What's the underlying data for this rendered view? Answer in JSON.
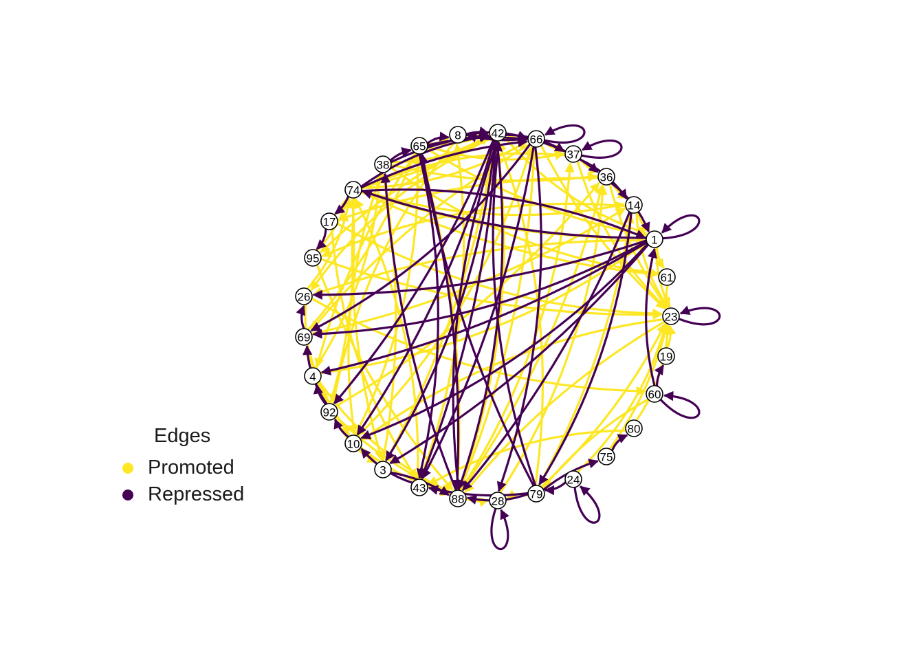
{
  "legend": {
    "title": "Edges",
    "items": [
      {
        "label": "Promoted",
        "color": "#FDE725"
      },
      {
        "label": "Repressed",
        "color": "#440154"
      }
    ]
  },
  "nodes": [
    "42",
    "66",
    "37",
    "36",
    "14",
    "1",
    "61",
    "23",
    "19",
    "60",
    "80",
    "75",
    "24",
    "79",
    "28",
    "88",
    "43",
    "3",
    "10",
    "92",
    "4",
    "69",
    "26",
    "95",
    "17",
    "74",
    "38",
    "65",
    "8"
  ],
  "edges": {
    "promoted": [
      [
        "65",
        "42"
      ],
      [
        "38",
        "42"
      ],
      [
        "74",
        "42"
      ],
      [
        "74",
        "66"
      ],
      [
        "8",
        "66"
      ],
      [
        "65",
        "37"
      ],
      [
        "38",
        "36"
      ],
      [
        "74",
        "14"
      ],
      [
        "74",
        "1"
      ],
      [
        "17",
        "74"
      ],
      [
        "95",
        "74"
      ],
      [
        "26",
        "74"
      ],
      [
        "69",
        "65"
      ],
      [
        "4",
        "38"
      ],
      [
        "92",
        "74"
      ],
      [
        "10",
        "65"
      ],
      [
        "3",
        "38"
      ],
      [
        "43",
        "74"
      ],
      [
        "88",
        "65"
      ],
      [
        "88",
        "42"
      ],
      [
        "88",
        "66"
      ],
      [
        "88",
        "37"
      ],
      [
        "88",
        "36"
      ],
      [
        "28",
        "36"
      ],
      [
        "79",
        "14"
      ],
      [
        "79",
        "42"
      ],
      [
        "79",
        "23"
      ],
      [
        "24",
        "23"
      ],
      [
        "75",
        "23"
      ],
      [
        "80",
        "23"
      ],
      [
        "19",
        "23"
      ],
      [
        "61",
        "23"
      ],
      [
        "1",
        "23"
      ],
      [
        "14",
        "23"
      ],
      [
        "36",
        "23"
      ],
      [
        "37",
        "23"
      ],
      [
        "66",
        "23"
      ],
      [
        "42",
        "1"
      ],
      [
        "65",
        "1"
      ],
      [
        "38",
        "61"
      ],
      [
        "74",
        "61"
      ],
      [
        "17",
        "23"
      ],
      [
        "95",
        "23"
      ],
      [
        "26",
        "60"
      ],
      [
        "69",
        "14"
      ],
      [
        "4",
        "1"
      ],
      [
        "92",
        "36"
      ],
      [
        "10",
        "66"
      ],
      [
        "3",
        "42"
      ],
      [
        "43",
        "8"
      ],
      [
        "88",
        "28"
      ],
      [
        "79",
        "28"
      ],
      [
        "60",
        "79"
      ],
      [
        "80",
        "43"
      ],
      [
        "23",
        "88"
      ],
      [
        "23",
        "10"
      ],
      [
        "1",
        "26"
      ],
      [
        "14",
        "95"
      ],
      [
        "36",
        "17"
      ],
      [
        "37",
        "74"
      ],
      [
        "42",
        "95"
      ],
      [
        "42",
        "26"
      ],
      [
        "66",
        "69"
      ],
      [
        "8",
        "92"
      ],
      [
        "65",
        "4"
      ],
      [
        "38",
        "10"
      ],
      [
        "74",
        "3"
      ],
      [
        "17",
        "43"
      ],
      [
        "95",
        "88"
      ],
      [
        "26",
        "92"
      ],
      [
        "69",
        "10"
      ],
      [
        "4",
        "88"
      ],
      [
        "92",
        "88"
      ],
      [
        "92",
        "3"
      ],
      [
        "10",
        "88"
      ],
      [
        "65",
        "8"
      ],
      [
        "8",
        "42"
      ],
      [
        "42",
        "66"
      ],
      [
        "66",
        "37"
      ],
      [
        "37",
        "36"
      ],
      [
        "36",
        "14"
      ],
      [
        "14",
        "1"
      ],
      [
        "1",
        "61"
      ]
    ],
    "repressed": [
      [
        "42",
        "10"
      ],
      [
        "42",
        "3"
      ],
      [
        "42",
        "43"
      ],
      [
        "42",
        "88"
      ],
      [
        "42",
        "92"
      ],
      [
        "66",
        "28"
      ],
      [
        "66",
        "43"
      ],
      [
        "66",
        "69"
      ],
      [
        "65",
        "88"
      ],
      [
        "65",
        "43"
      ],
      [
        "38",
        "42"
      ],
      [
        "74",
        "42"
      ],
      [
        "74",
        "66"
      ],
      [
        "8",
        "66"
      ],
      [
        "65",
        "66"
      ],
      [
        "42",
        "37"
      ],
      [
        "66",
        "36"
      ],
      [
        "37",
        "14"
      ],
      [
        "1",
        "26"
      ],
      [
        "1",
        "69"
      ],
      [
        "1",
        "4"
      ],
      [
        "1",
        "10"
      ],
      [
        "1",
        "3"
      ],
      [
        "14",
        "79"
      ],
      [
        "14",
        "88"
      ],
      [
        "60",
        "1"
      ],
      [
        "60",
        "19"
      ],
      [
        "79",
        "42"
      ],
      [
        "79",
        "65"
      ],
      [
        "79",
        "88"
      ],
      [
        "79",
        "43"
      ],
      [
        "88",
        "42"
      ],
      [
        "88",
        "38"
      ],
      [
        "24",
        "79"
      ],
      [
        "79",
        "75"
      ],
      [
        "75",
        "80"
      ],
      [
        "3",
        "88"
      ],
      [
        "43",
        "10"
      ],
      [
        "10",
        "92"
      ],
      [
        "92",
        "69"
      ],
      [
        "92",
        "4"
      ],
      [
        "69",
        "26"
      ],
      [
        "74",
        "17"
      ],
      [
        "17",
        "95"
      ],
      [
        "38",
        "65"
      ],
      [
        "65",
        "8"
      ],
      [
        "8",
        "42"
      ],
      [
        "74",
        "1"
      ],
      [
        "66",
        "8"
      ],
      [
        "36",
        "1"
      ],
      [
        "1",
        "74"
      ]
    ],
    "self_loops": [
      "66",
      "37",
      "1",
      "23",
      "60",
      "24",
      "28"
    ]
  }
}
